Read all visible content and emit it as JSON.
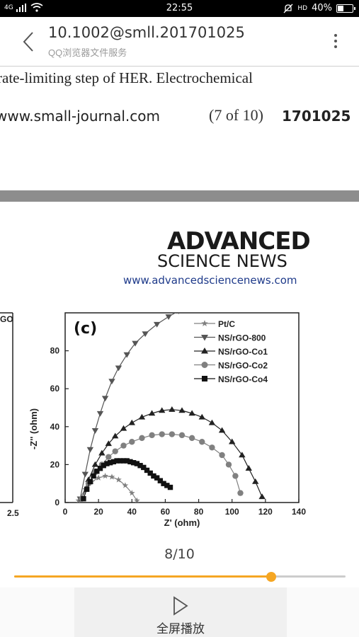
{
  "status_bar": {
    "signal": "4G",
    "time": "22:55",
    "hd": "HD",
    "battery": "40%",
    "battery_level": 0.4
  },
  "header": {
    "title": "10.1002@smll.201701025",
    "subtitle": "QQ浏览器文件服务"
  },
  "page_top": {
    "body_text": "rate-limiting step of HER. Electrochemical",
    "footer_url": "www.small-journal.com",
    "footer_page": "(7 of 10)",
    "footer_id": "1701025"
  },
  "logo": {
    "line1": "ADVANCED",
    "line2": "SCIENCE NEWS",
    "url": "www.advancedsciencenews.com"
  },
  "chart_data": {
    "type": "scatter",
    "panel_label": "(c)",
    "left_panel_fragment": {
      "label": "GO",
      "tick": "2.5"
    },
    "xlabel": "Z' (ohm)",
    "ylabel": "-Z'' (ohm)",
    "xlim": [
      0,
      140
    ],
    "ylim": [
      0,
      100
    ],
    "xticks": [
      0,
      20,
      40,
      60,
      80,
      100,
      120,
      140
    ],
    "yticks": [
      0,
      20,
      40,
      60,
      80
    ],
    "legend_position": "top-right",
    "series": [
      {
        "name": "Pt/C",
        "marker": "star",
        "color": "#808080",
        "x": [
          8,
          12,
          16,
          20,
          24,
          28,
          32,
          36,
          40,
          43
        ],
        "y": [
          1,
          7,
          11,
          13,
          14,
          13.5,
          12,
          9,
          5,
          1
        ]
      },
      {
        "name": "NS/rGO-800",
        "marker": "triangle-down",
        "color": "#555555",
        "x": [
          9,
          12,
          15,
          18,
          21,
          24,
          28,
          32,
          37,
          42,
          48,
          55,
          62,
          68
        ],
        "y": [
          2,
          15,
          28,
          38,
          47,
          55,
          64,
          71,
          78,
          84,
          89,
          94,
          98,
          101
        ]
      },
      {
        "name": "NS/rGO-Co1",
        "marker": "triangle-up",
        "color": "#222222",
        "x": [
          10,
          14,
          18,
          22,
          26,
          30,
          35,
          40,
          46,
          52,
          58,
          64,
          70,
          76,
          82,
          88,
          94,
          100,
          106,
          110,
          114,
          118
        ],
        "y": [
          2,
          12,
          20,
          26,
          31,
          35,
          39,
          42,
          45,
          47,
          48.5,
          49,
          48.5,
          47,
          45,
          42,
          38,
          32,
          25,
          18,
          11,
          3
        ]
      },
      {
        "name": "NS/rGO-Co2",
        "marker": "circle",
        "color": "#808080",
        "x": [
          10,
          14,
          18,
          22,
          26,
          30,
          35,
          40,
          46,
          52,
          58,
          64,
          70,
          76,
          82,
          88,
          94,
          98,
          102,
          105
        ],
        "y": [
          2,
          10,
          16,
          20,
          24,
          27,
          30,
          32,
          34,
          35.5,
          36,
          36,
          35.5,
          34,
          32,
          29,
          25,
          20,
          14,
          5
        ]
      },
      {
        "name": "NS/rGO-Co4",
        "marker": "square",
        "color": "#111111",
        "x": [
          11,
          13,
          15,
          17,
          19,
          21,
          23,
          25,
          27,
          29,
          31,
          33,
          35,
          37,
          39,
          41,
          43,
          45,
          47,
          49,
          51,
          53,
          55,
          57,
          59,
          61,
          63
        ],
        "y": [
          2,
          7,
          11,
          14,
          16.5,
          18,
          19.5,
          20.5,
          21,
          21.5,
          22,
          22,
          22,
          22,
          21.5,
          21,
          20.5,
          19.5,
          18.5,
          17,
          15.5,
          14,
          13,
          11.5,
          10,
          9,
          8
        ]
      }
    ]
  },
  "pager": {
    "text": "8/10",
    "progress": 0.775
  },
  "bottom": {
    "fullscreen_label": "全屏播放"
  }
}
